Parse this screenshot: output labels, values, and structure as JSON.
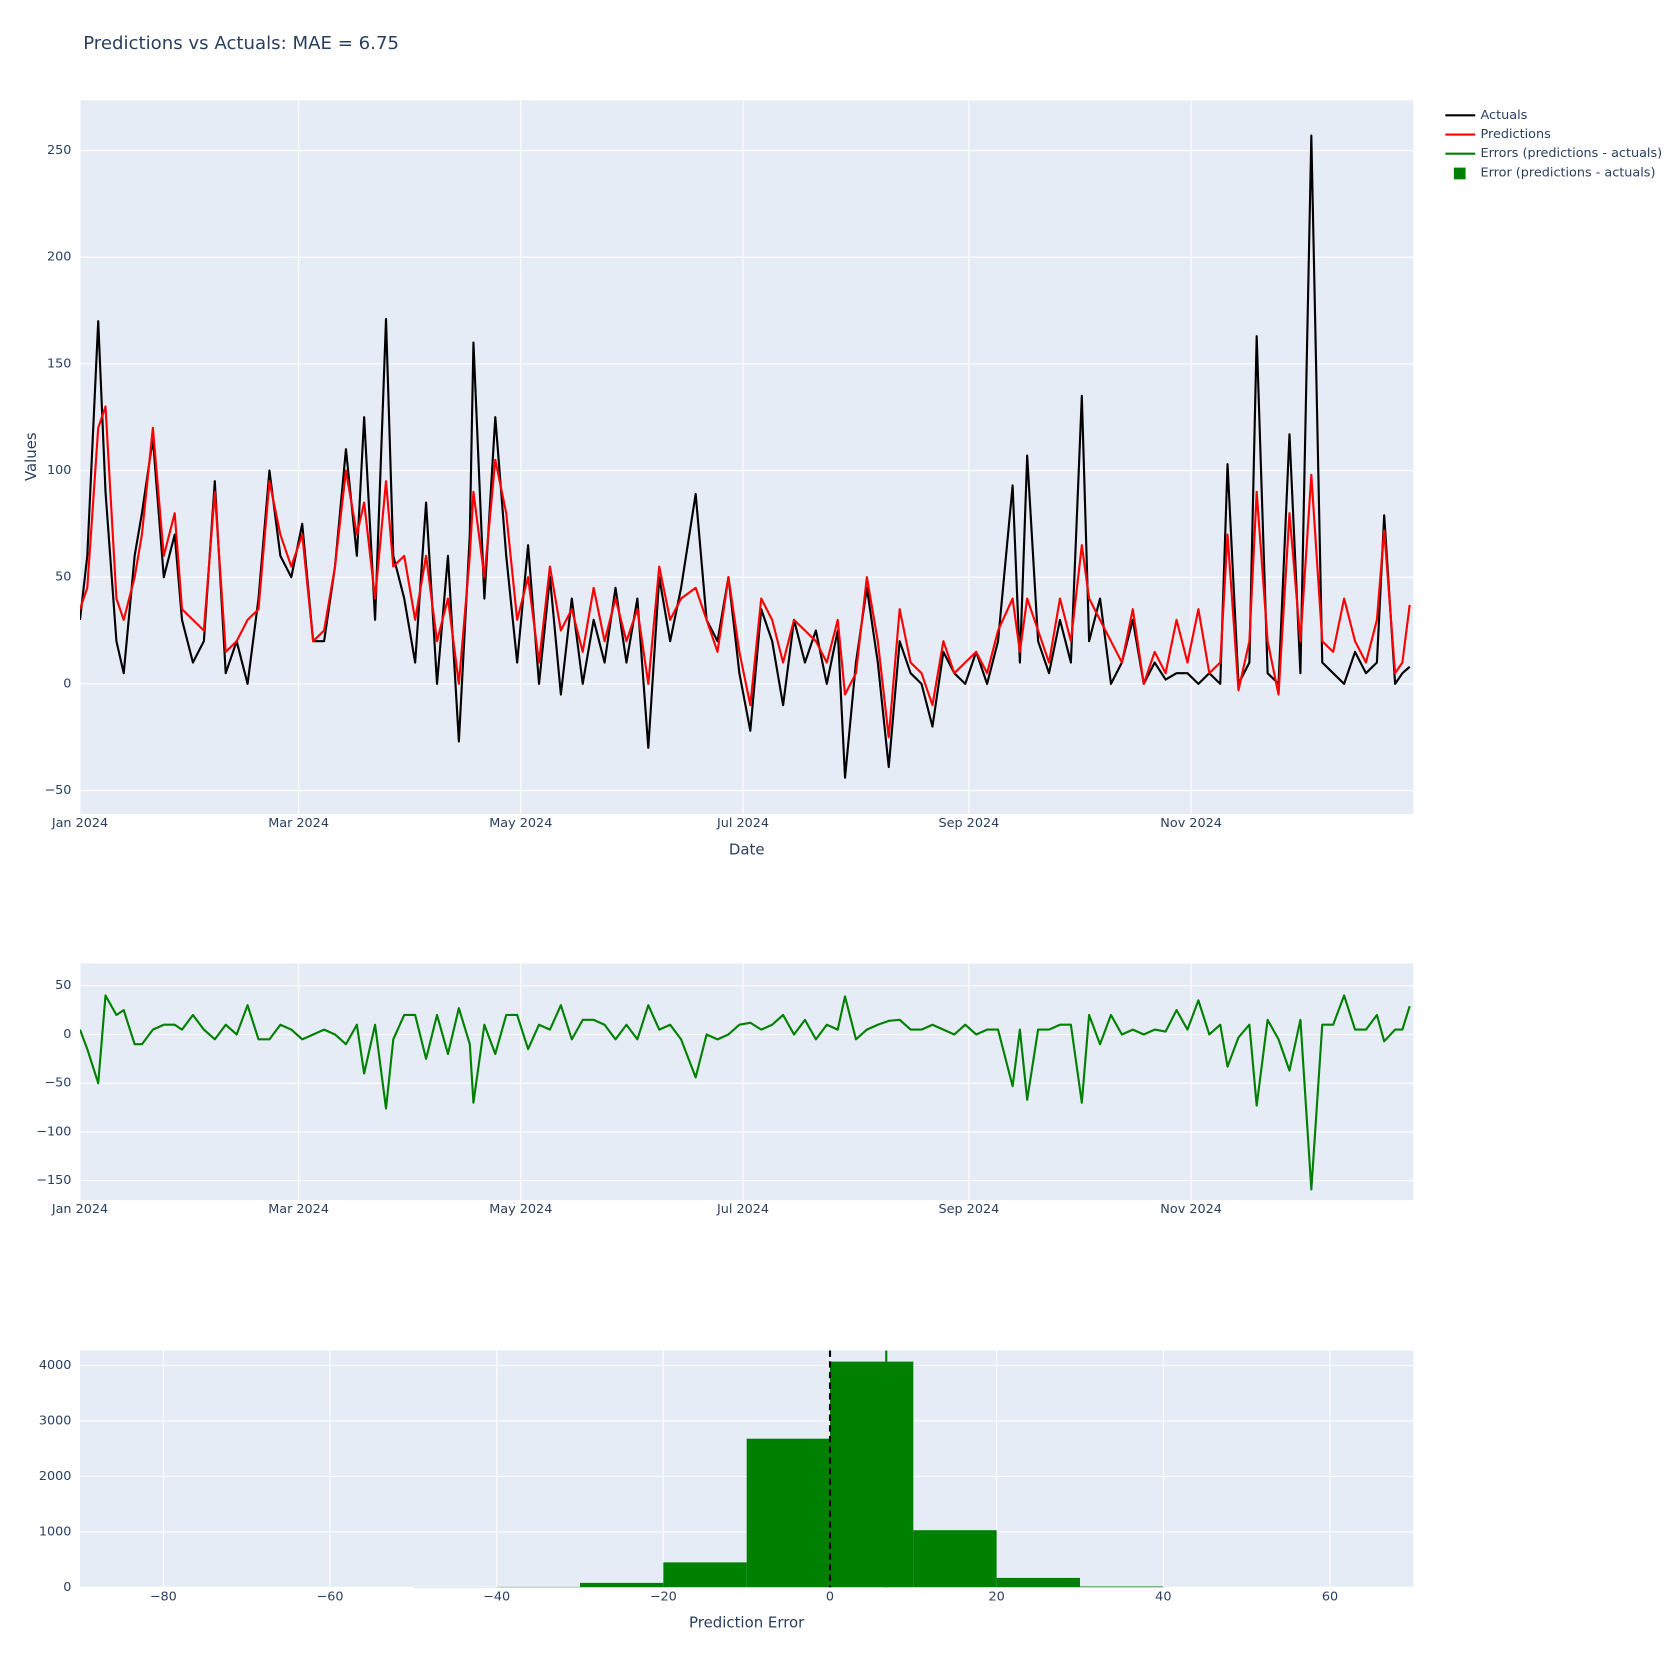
{
  "legend": "outside-right",
  "chart_data": [
    {
      "type": "line",
      "title": "Predictions vs Actuals: MAE = 6.75",
      "x_label": "Date",
      "y_label": "Values",
      "grid": true,
      "x": [
        0,
        2,
        5,
        7,
        10,
        12,
        15,
        17,
        20,
        23,
        26,
        28,
        31,
        34,
        37,
        40,
        43,
        46,
        49,
        52,
        55,
        58,
        61,
        64,
        67,
        70,
        73,
        76,
        78,
        81,
        84,
        86,
        89,
        92,
        95,
        98,
        101,
        104,
        107,
        108,
        111,
        114,
        117,
        120,
        123,
        126,
        129,
        132,
        135,
        138,
        141,
        144,
        147,
        150,
        153,
        156,
        159,
        162,
        165,
        169,
        172,
        175,
        178,
        181,
        184,
        187,
        190,
        193,
        196,
        199,
        202,
        205,
        208,
        210,
        213,
        216,
        219,
        222,
        225,
        228,
        231,
        234,
        237,
        240,
        243,
        246,
        249,
        252,
        256,
        258,
        260,
        263,
        266,
        269,
        272,
        275,
        277,
        280,
        283,
        286,
        289,
        292,
        295,
        298,
        301,
        304,
        307,
        310,
        313,
        315,
        318,
        321,
        323,
        326,
        329,
        332,
        335,
        338,
        341,
        344,
        347,
        350,
        353,
        356,
        358,
        361,
        363,
        365
      ],
      "series": [
        {
          "name": "Actuals",
          "color": "#000000",
          "values": [
            30,
            60,
            170,
            90,
            20,
            5,
            60,
            80,
            115,
            50,
            70,
            30,
            10,
            20,
            95,
            5,
            20,
            0,
            40,
            100,
            60,
            50,
            75,
            20,
            20,
            55,
            110,
            60,
            125,
            30,
            171,
            60,
            40,
            10,
            85,
            0,
            60,
            -27,
            70,
            160,
            40,
            125,
            60,
            10,
            65,
            0,
            50,
            -5,
            40,
            0,
            30,
            10,
            45,
            10,
            40,
            -30,
            50,
            20,
            45,
            89,
            30,
            20,
            50,
            5,
            -22,
            35,
            20,
            -10,
            30,
            10,
            25,
            0,
            25,
            -44,
            10,
            45,
            10,
            -39,
            20,
            5,
            0,
            -20,
            15,
            5,
            0,
            15,
            0,
            20,
            93,
            10,
            107,
            20,
            5,
            30,
            10,
            135,
            20,
            40,
            0,
            10,
            30,
            0,
            10,
            2,
            5,
            5,
            0,
            5,
            0,
            103,
            0,
            10,
            163,
            5,
            0,
            117,
            5,
            257,
            10,
            5,
            0,
            15,
            5,
            10,
            79,
            0,
            5,
            8
          ]
        },
        {
          "name": "Predictions",
          "color": "#ff0000",
          "values": [
            35,
            45,
            120,
            130,
            40,
            30,
            50,
            70,
            120,
            60,
            80,
            35,
            30,
            25,
            90,
            15,
            20,
            30,
            35,
            95,
            70,
            55,
            70,
            20,
            25,
            55,
            100,
            70,
            85,
            40,
            95,
            55,
            60,
            30,
            60,
            20,
            40,
            0,
            60,
            90,
            50,
            105,
            80,
            30,
            50,
            10,
            55,
            25,
            35,
            15,
            45,
            20,
            40,
            20,
            35,
            0,
            55,
            30,
            40,
            45,
            30,
            15,
            50,
            15,
            -10,
            40,
            30,
            10,
            30,
            25,
            20,
            10,
            30,
            -5,
            5,
            50,
            20,
            -25,
            35,
            10,
            5,
            -10,
            20,
            5,
            10,
            15,
            5,
            25,
            40,
            15,
            40,
            25,
            10,
            40,
            20,
            65,
            40,
            30,
            20,
            10,
            35,
            0,
            15,
            5,
            30,
            10,
            35,
            5,
            10,
            70,
            -3,
            20,
            90,
            20,
            -5,
            80,
            20,
            98,
            20,
            15,
            40,
            20,
            10,
            30,
            72,
            5,
            10,
            37
          ]
        }
      ],
      "xlim": [
        0,
        366
      ],
      "ylim": [
        -61,
        273.5
      ],
      "xticks": [
        {
          "value": 0,
          "label": "Jan 2024"
        },
        {
          "value": 60,
          "label": "Mar 2024"
        },
        {
          "value": 121,
          "label": "May 2024"
        },
        {
          "value": 182,
          "label": "Jul 2024"
        },
        {
          "value": 244,
          "label": "Sep 2024"
        },
        {
          "value": 305,
          "label": "Nov 2024"
        }
      ],
      "yticks": [
        {
          "value": -50,
          "label": "−50"
        },
        0,
        50,
        100,
        150,
        200,
        250
      ]
    },
    {
      "type": "line",
      "grid": true,
      "x": [
        0,
        2,
        5,
        7,
        10,
        12,
        15,
        17,
        20,
        23,
        26,
        28,
        31,
        34,
        37,
        40,
        43,
        46,
        49,
        52,
        55,
        58,
        61,
        64,
        67,
        70,
        73,
        76,
        78,
        81,
        84,
        86,
        89,
        92,
        95,
        98,
        101,
        104,
        107,
        108,
        111,
        114,
        117,
        120,
        123,
        126,
        129,
        132,
        135,
        138,
        141,
        144,
        147,
        150,
        153,
        156,
        159,
        162,
        165,
        169,
        172,
        175,
        178,
        181,
        184,
        187,
        190,
        193,
        196,
        199,
        202,
        205,
        208,
        210,
        213,
        216,
        219,
        222,
        225,
        228,
        231,
        234,
        237,
        240,
        243,
        246,
        249,
        252,
        256,
        258,
        260,
        263,
        266,
        269,
        272,
        275,
        277,
        280,
        283,
        286,
        289,
        292,
        295,
        298,
        301,
        304,
        307,
        310,
        313,
        315,
        318,
        321,
        323,
        326,
        329,
        332,
        335,
        338,
        341,
        344,
        347,
        350,
        353,
        356,
        358,
        361,
        363,
        365
      ],
      "series": [
        {
          "name": "Errors (predictions - actuals)",
          "color": "#008000",
          "values": [
            5,
            -15,
            -50,
            40,
            20,
            25,
            -10,
            -10,
            5,
            10,
            10,
            5,
            20,
            5,
            -5,
            10,
            0,
            30,
            -5,
            -5,
            10,
            5,
            -5,
            0,
            5,
            0,
            -10,
            10,
            -40,
            10,
            -76,
            -5,
            20,
            20,
            -25,
            20,
            -20,
            27,
            -10,
            -70,
            10,
            -20,
            20,
            20,
            -15,
            10,
            5,
            30,
            -5,
            15,
            15,
            10,
            -5,
            10,
            -5,
            30,
            5,
            10,
            -5,
            -44,
            0,
            -5,
            0,
            10,
            12,
            5,
            10,
            20,
            0,
            15,
            -5,
            10,
            5,
            39,
            -5,
            5,
            10,
            14,
            15,
            5,
            5,
            10,
            5,
            0,
            10,
            0,
            5,
            5,
            -53,
            5,
            -67,
            5,
            5,
            10,
            10,
            -70,
            20,
            -10,
            20,
            0,
            5,
            0,
            5,
            3,
            25,
            5,
            35,
            0,
            10,
            -33,
            -3,
            10,
            -73,
            15,
            -5,
            -37,
            15,
            -159,
            10,
            10,
            40,
            5,
            5,
            20,
            -7,
            5,
            5,
            29
          ]
        }
      ],
      "xlim": [
        0,
        366
      ],
      "ylim": [
        -170,
        73
      ],
      "xticks": [
        {
          "value": 0,
          "label": "Jan 2024"
        },
        {
          "value": 60,
          "label": "Mar 2024"
        },
        {
          "value": 121,
          "label": "May 2024"
        },
        {
          "value": 182,
          "label": "Jul 2024"
        },
        {
          "value": 244,
          "label": "Sep 2024"
        },
        {
          "value": 305,
          "label": "Nov 2024"
        }
      ],
      "yticks": [
        {
          "value": -150,
          "label": "−150"
        },
        {
          "value": -100,
          "label": "−100"
        },
        {
          "value": -50,
          "label": "−50"
        },
        0,
        50
      ]
    },
    {
      "type": "histogram",
      "x_label": "Prediction Error",
      "grid": true,
      "bins": [
        -50,
        -40,
        -30,
        -20,
        -10,
        0,
        10,
        20,
        30,
        40
      ],
      "series": [
        {
          "name": "Error (predictions - actuals)",
          "color": "#008000",
          "values": [
            3,
            8,
            80,
            450,
            2680,
            4070,
            1030,
            170,
            15
          ]
        }
      ],
      "reference_lines": [
        {
          "value": 0,
          "color": "#000000",
          "dash": true
        },
        {
          "value": 6.75,
          "color": "#008000",
          "dash": false
        }
      ],
      "xlim": [
        -90,
        70
      ],
      "ylim": [
        0,
        4270
      ],
      "xticks": [
        {
          "value": -80,
          "label": "−80"
        },
        {
          "value": -60,
          "label": "−60"
        },
        {
          "value": -40,
          "label": "−40"
        },
        {
          "value": -20,
          "label": "−20"
        },
        0,
        20,
        40,
        60
      ],
      "yticks": [
        0,
        1000,
        2000,
        3000,
        4000
      ]
    }
  ]
}
